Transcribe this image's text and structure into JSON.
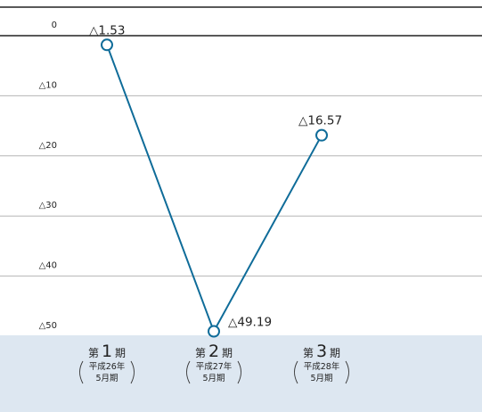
{
  "chart_data": {
    "type": "line",
    "title": "",
    "xlabel": "",
    "ylabel": "",
    "ylim": [
      -50,
      0
    ],
    "yticks": [
      {
        "value": 0,
        "label": "0"
      },
      {
        "value": -10,
        "label": "△10"
      },
      {
        "value": -20,
        "label": "△20"
      },
      {
        "value": -30,
        "label": "△30"
      },
      {
        "value": -40,
        "label": "△40"
      },
      {
        "value": -50,
        "label": "△50"
      }
    ],
    "categories": [
      {
        "dai": "第",
        "num": "1",
        "ki": "期",
        "sub1": "平成26年",
        "sub2": "5月期"
      },
      {
        "dai": "第",
        "num": "2",
        "ki": "期",
        "sub1": "平成27年",
        "sub2": "5月期"
      },
      {
        "dai": "第",
        "num": "3",
        "ki": "期",
        "sub1": "平成28年",
        "sub2": "5月期"
      }
    ],
    "values": [
      -1.53,
      -49.19,
      -16.57
    ],
    "data_labels": [
      "△1.53",
      "△49.19",
      "△16.57"
    ],
    "grid": true,
    "line_color": "#0f6c99",
    "band_color": "#dde7f1"
  }
}
